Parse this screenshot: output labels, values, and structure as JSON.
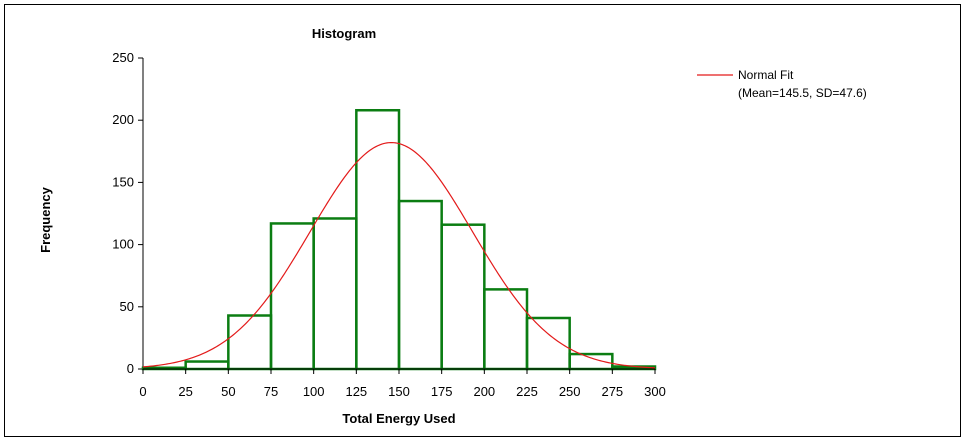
{
  "chart_data": {
    "type": "bar",
    "title": "Histogram",
    "xlabel": "Total Energy Used",
    "ylabel": "Frequency",
    "xlim": [
      0,
      300
    ],
    "ylim": [
      0,
      250
    ],
    "x_ticks": [
      0,
      25,
      50,
      75,
      100,
      125,
      150,
      175,
      200,
      225,
      250,
      275,
      300
    ],
    "y_ticks": [
      0,
      50,
      100,
      150,
      200,
      250
    ],
    "bins": [
      {
        "start": 0,
        "end": 25,
        "value": 1
      },
      {
        "start": 25,
        "end": 50,
        "value": 6
      },
      {
        "start": 50,
        "end": 75,
        "value": 43
      },
      {
        "start": 75,
        "end": 100,
        "value": 117
      },
      {
        "start": 100,
        "end": 125,
        "value": 121
      },
      {
        "start": 125,
        "end": 150,
        "value": 208
      },
      {
        "start": 150,
        "end": 175,
        "value": 135
      },
      {
        "start": 175,
        "end": 200,
        "value": 116
      },
      {
        "start": 200,
        "end": 225,
        "value": 64
      },
      {
        "start": 225,
        "end": 250,
        "value": 41
      },
      {
        "start": 250,
        "end": 275,
        "value": 12
      },
      {
        "start": 275,
        "end": 300,
        "value": 2
      }
    ],
    "fit": {
      "name": "Normal Fit",
      "note": "(Mean=145.5, SD=47.6)",
      "mean": 145.5,
      "sd": 47.6,
      "peak": 182
    },
    "legend_position": "top-right",
    "colors": {
      "bars": "#0b7d12",
      "fit": "#e31b1b",
      "axis": "#000000"
    }
  }
}
